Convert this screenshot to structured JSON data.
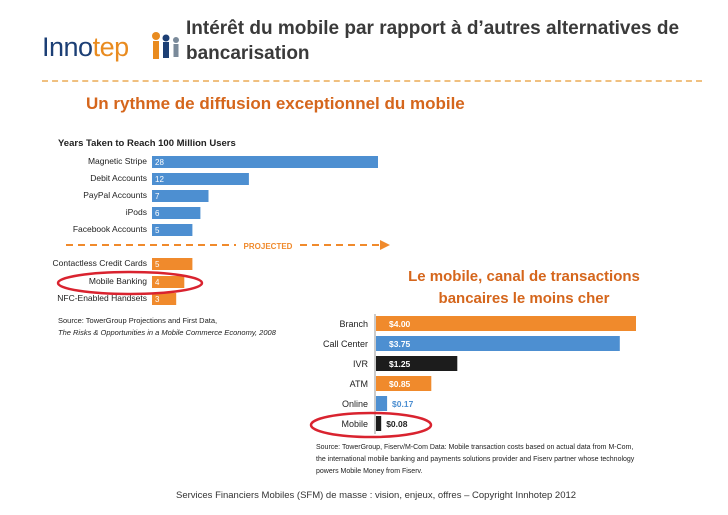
{
  "header": {
    "title": "Intérêt du mobile par rapport à d’autres alternatives de bancarisation",
    "logo_part1": "Inno",
    "logo_part2": "tep",
    "logo_part3": "Inn"
  },
  "subtitle": "Un rythme de diffusion exceptionnel du mobile",
  "right_heading": "Le mobile, canal de transactions bancaires le moins cher",
  "footer": "Services Financiers Mobiles (SFM) de masse : vision, enjeux, offres – Copyright Innhotep 2012",
  "colors": {
    "blue": "#4d8fd1",
    "orange": "#f08a2c",
    "dark": "#1c1c1c",
    "accent": "#d5661c",
    "circle": "#d9232f"
  },
  "chart_data": [
    {
      "type": "bar",
      "title": "Years Taken to Reach 100 Million Users",
      "categories": [
        "Magnetic Stripe",
        "Debit Accounts",
        "PayPal Accounts",
        "iPods",
        "Facebook Accounts",
        "Contactless Credit Cards",
        "Mobile Banking",
        "NFC-Enabled Handsets"
      ],
      "values": [
        28,
        12,
        7,
        6,
        5,
        5,
        4,
        3
      ],
      "projected": [
        false,
        false,
        false,
        false,
        false,
        true,
        true,
        true
      ],
      "divider_label": "PROJECTED",
      "highlight": "Mobile Banking",
      "source_line1": "Source: TowerGroup Projections and First Data,",
      "source_line2": "The Risks & Opportunities in a Mobile Commerce Economy, 2008"
    },
    {
      "type": "bar",
      "categories": [
        "Branch",
        "Call Center",
        "IVR",
        "ATM",
        "Online",
        "Mobile"
      ],
      "values": [
        4.0,
        3.75,
        1.25,
        0.85,
        0.17,
        0.08
      ],
      "labels": [
        "$4.00",
        "$3.75",
        "$1.25",
        "$0.85",
        "$0.17",
        "$0.08"
      ],
      "bar_colors": [
        "#f08a2c",
        "#4d8fd1",
        "#1c1c1c",
        "#f08a2c",
        "#4d8fd1",
        "#1c1c1c"
      ],
      "highlight": "Mobile",
      "source_lines": [
        "Source: TowerGroup, Fiserv/M-Com Data: Mobile transaction costs based on actual data from M-Com,",
        "the international mobile banking and payments solutions provider and Fiserv partner whose technology",
        "powers Mobile Money from Fiserv."
      ]
    }
  ]
}
